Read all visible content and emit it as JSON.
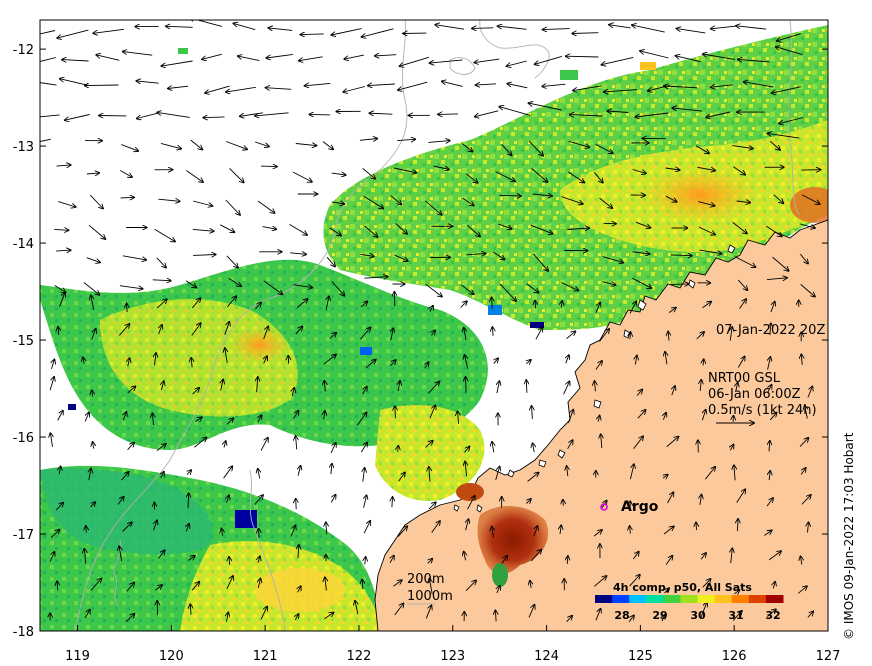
{
  "map": {
    "extent": {
      "lon_min": 118.6,
      "lon_max": 127.0,
      "lat_min": -18.0,
      "lat_max": -11.7
    },
    "lon_ticks": [
      "119",
      "120",
      "121",
      "122",
      "123",
      "124",
      "125",
      "126",
      "127"
    ],
    "lat_ticks": [
      "-12",
      "-13",
      "-14",
      "-15",
      "-16",
      "-17",
      "-18"
    ],
    "land_color": "#fbc99b",
    "no_data_color": "#ffffff"
  },
  "annotations": {
    "date": "07-Jan-2022 20Z",
    "current_line1": "NRT00 GSL",
    "current_line2": "06-Jan 06:00Z",
    "current_line3": "0.5m/s (1kt 24h)",
    "argo_label": "Argo",
    "isobath_200": "200m",
    "isobath_1000": "1000m"
  },
  "colorbar": {
    "title": "4h comp, p50, All Sats",
    "ticks": [
      "28",
      "29",
      "30",
      "31",
      "32"
    ],
    "colors": [
      "#000080",
      "#0040ff",
      "#00c0ff",
      "#00e0a0",
      "#40d040",
      "#a0e020",
      "#f0f020",
      "#ffc020",
      "#ff8000",
      "#e04000",
      "#a00000"
    ]
  },
  "credit": "© IMOS 09-Jan-2022 17:03 Hobart"
}
